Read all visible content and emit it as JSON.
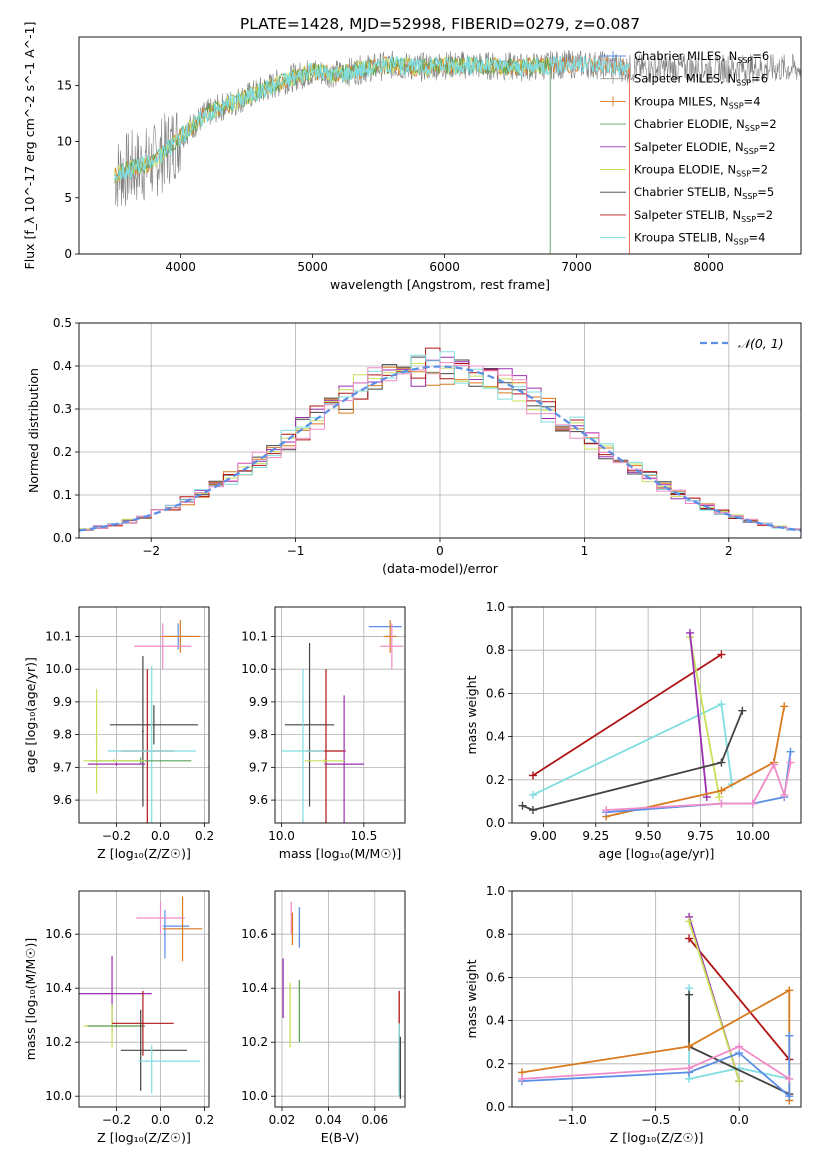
{
  "figure_title": "PLATE=1428, MJD=52998, FIBERID=0279, z=0.087",
  "colors": {
    "Chabrier MILES": "#5b8ee6",
    "Salpeter MILES": "#9a9a9a",
    "Kroupa MILES": "#d97a1f",
    "Chabrier ELODIE": "#5aa05a",
    "Salpeter ELODIE": "#9b30b0",
    "Kroupa ELODIE": "#c8e05a",
    "Chabrier STELIB": "#444444",
    "Salpeter STELIB": "#b01515",
    "Kroupa STELIB": "#80dde0",
    "pink": "#f08cc8",
    "normal": "#5b8ee6"
  },
  "chart_data": [
    {
      "id": "spectrum",
      "type": "line",
      "xlabel": "wavelength [Angstrom, rest frame]",
      "ylabel": "Flux [f_λ 10^-17 erg cm^-2 s^-1 A^-1]",
      "xlim": [
        3230,
        8700
      ],
      "ylim": [
        0,
        19.3
      ],
      "xticks": [
        4000,
        5000,
        6000,
        7000,
        8000
      ],
      "yticks": [
        0,
        5,
        10,
        15
      ],
      "grid": false,
      "legend_position": "top-right",
      "legend": [
        {
          "name": "Chabrier MILES",
          "n_label": "6"
        },
        {
          "name": "Salpeter MILES",
          "n_label": "6"
        },
        {
          "name": "Kroupa MILES",
          "n_label": "4"
        },
        {
          "name": "Chabrier ELODIE",
          "n_label": "2"
        },
        {
          "name": "Salpeter ELODIE",
          "n_label": "2"
        },
        {
          "name": "Kroupa ELODIE",
          "n_label": "2"
        },
        {
          "name": "Chabrier STELIB",
          "n_label": "5"
        },
        {
          "name": "Salpeter STELIB",
          "n_label": "2"
        },
        {
          "name": "Kroupa STELIB",
          "n_label": "4"
        }
      ],
      "continuum": {
        "x": [
          3500,
          3600,
          3800,
          4000,
          4200,
          4400,
          4600,
          4800,
          5000,
          5200,
          5400,
          5600,
          5800,
          6000,
          6200,
          6400,
          6600,
          6800,
          7000,
          7200,
          7400
        ],
        "y": [
          7.0,
          7.5,
          8.2,
          10.5,
          12.5,
          13.5,
          14.5,
          15.5,
          16.2,
          16.0,
          16.5,
          16.8,
          16.6,
          16.8,
          16.8,
          16.7,
          16.6,
          16.8,
          16.9,
          16.8,
          16.5
        ]
      }
    },
    {
      "id": "residuals",
      "type": "line",
      "xlabel": "(data-model)/error",
      "ylabel": "Normed distribution",
      "xlim": [
        -2.5,
        2.5
      ],
      "ylim": [
        0,
        0.5
      ],
      "xticks": [
        -2,
        -1,
        0,
        1,
        2
      ],
      "yticks": [
        0.0,
        0.1,
        0.2,
        0.3,
        0.4,
        0.5
      ],
      "grid": true,
      "legend_position": "top-right",
      "normal_label": "𝒩(0, 1)"
    },
    {
      "id": "age_vs_Z",
      "type": "scatter",
      "xlabel": "Z [log₁₀(Z/Z☉)]",
      "ylabel": "age  [log₁₀(age/yr)]",
      "xlim": [
        -0.37,
        0.22
      ],
      "ylim": [
        9.53,
        10.19
      ],
      "xticks": [
        -0.2,
        0.0,
        0.2
      ],
      "yticks": [
        9.6,
        9.7,
        9.8,
        9.9,
        10.0,
        10.1
      ],
      "grid": true,
      "points": [
        {
          "model": "Chabrier MILES",
          "x": 0.08,
          "y": 10.1,
          "xerr": 0.06,
          "yerr": 0.04
        },
        {
          "model": "Kroupa MILES",
          "x": 0.09,
          "y": 10.1,
          "xerr": 0.09,
          "yerr": 0.05
        },
        {
          "model": "pink",
          "x": 0.01,
          "y": 10.07,
          "xerr": 0.13,
          "yerr": 0.07
        },
        {
          "model": "Chabrier STELIB",
          "x": -0.03,
          "y": 9.83,
          "xerr": 0.2,
          "yerr": 0.06
        },
        {
          "model": "Chabrier STELIB",
          "x": -0.08,
          "y": 9.81,
          "xerr": 0.004,
          "yerr": 0.23
        },
        {
          "model": "Salpeter STELIB",
          "x": -0.06,
          "y": 9.75,
          "xerr": 0.12,
          "yerr": 0.25
        },
        {
          "model": "Kroupa STELIB",
          "x": -0.04,
          "y": 9.75,
          "xerr": 0.2,
          "yerr": 0.26
        },
        {
          "model": "Kroupa ELODIE",
          "x": -0.29,
          "y": 9.78,
          "xerr": 0.005,
          "yerr": 0.16
        },
        {
          "model": "Chabrier ELODIE",
          "x": -0.09,
          "y": 9.72,
          "xerr": 0.23,
          "yerr": 0.01
        },
        {
          "model": "Kroupa ELODIE",
          "x": -0.21,
          "y": 9.72,
          "xerr": 0.14,
          "yerr": 0.005
        },
        {
          "model": "Salpeter ELODIE",
          "x": -0.2,
          "y": 9.71,
          "xerr": 0.13,
          "yerr": 0.005
        }
      ]
    },
    {
      "id": "age_vs_mass",
      "type": "scatter",
      "xlabel": "mass [log₁₀(M/M☉)]",
      "ylabel": "",
      "xlim": [
        9.96,
        10.75
      ],
      "ylim": [
        9.53,
        10.19
      ],
      "xticks": [
        10.0,
        10.5
      ],
      "yticks": [
        9.6,
        9.7,
        9.8,
        9.9,
        10.0,
        10.1
      ],
      "grid": true,
      "points": [
        {
          "model": "Chabrier MILES",
          "x": 10.63,
          "y": 10.13,
          "xerr": 0.1,
          "yerr": 0.0
        },
        {
          "model": "Kroupa MILES",
          "x": 10.66,
          "y": 10.1,
          "xerr": 0.04,
          "yerr": 0.05
        },
        {
          "model": "pink",
          "x": 10.67,
          "y": 10.07,
          "xerr": 0.07,
          "yerr": 0.07
        },
        {
          "model": "Chabrier STELIB",
          "x": 10.17,
          "y": 9.83,
          "xerr": 0.15,
          "yerr": 0.25
        },
        {
          "model": "Salpeter STELIB",
          "x": 10.27,
          "y": 9.75,
          "xerr": 0.12,
          "yerr": 0.25
        },
        {
          "model": "Kroupa STELIB",
          "x": 10.13,
          "y": 9.75,
          "xerr": 0.13,
          "yerr": 0.25
        },
        {
          "model": "Salpeter ELODIE",
          "x": 10.38,
          "y": 9.71,
          "xerr": 0.12,
          "yerr": 0.21
        },
        {
          "model": "Kroupa ELODIE",
          "x": 10.26,
          "y": 9.72,
          "xerr": 0.12,
          "yerr": 0.005
        }
      ]
    },
    {
      "id": "weight_vs_age",
      "type": "line",
      "xlabel": "age  [log₁₀(age/yr)]",
      "ylabel": "mass weight",
      "xlim": [
        8.85,
        10.23
      ],
      "ylim": [
        0,
        1.0
      ],
      "xticks": [
        9.0,
        9.25,
        9.5,
        9.75,
        10.0
      ],
      "yticks": [
        0.0,
        0.2,
        0.4,
        0.6,
        0.8,
        1.0
      ],
      "grid": true,
      "series": [
        {
          "model": "Salpeter STELIB",
          "x": [
            8.95,
            9.85
          ],
          "y": [
            0.22,
            0.78
          ]
        },
        {
          "model": "Kroupa STELIB",
          "x": [
            8.95,
            9.85,
            9.9
          ],
          "y": [
            0.13,
            0.55,
            0.18
          ]
        },
        {
          "model": "Kroupa ELODIE",
          "x": [
            9.7,
            9.84
          ],
          "y": [
            0.86,
            0.12
          ]
        },
        {
          "model": "Salpeter ELODIE",
          "x": [
            9.7,
            9.78
          ],
          "y": [
            0.88,
            0.12
          ]
        },
        {
          "model": "Chabrier STELIB",
          "x": [
            8.9,
            8.95,
            9.85,
            9.95
          ],
          "y": [
            0.08,
            0.06,
            0.28,
            0.52
          ]
        },
        {
          "model": "Kroupa MILES",
          "x": [
            9.3,
            9.85,
            10.1,
            10.15
          ],
          "y": [
            0.03,
            0.15,
            0.28,
            0.54
          ]
        },
        {
          "model": "Chabrier MILES",
          "x": [
            9.3,
            9.85,
            10.0,
            10.15,
            10.18
          ],
          "y": [
            0.05,
            0.09,
            0.09,
            0.12,
            0.33
          ]
        },
        {
          "model": "pink",
          "x": [
            9.3,
            9.85,
            10.0,
            10.1,
            10.15,
            10.18
          ],
          "y": [
            0.06,
            0.09,
            0.09,
            0.27,
            0.13,
            0.28
          ]
        }
      ]
    },
    {
      "id": "mass_vs_Z",
      "type": "scatter",
      "xlabel": "Z [log₁₀(Z/Z☉)]",
      "ylabel": "mass [log₁₀(M/M☉)]",
      "xlim": [
        -0.37,
        0.22
      ],
      "ylim": [
        9.96,
        10.76
      ],
      "xticks": [
        -0.2,
        0.0,
        0.2
      ],
      "yticks": [
        10.0,
        10.2,
        10.4,
        10.6
      ],
      "grid": true,
      "points": [
        {
          "model": "Chabrier MILES",
          "x": 0.07,
          "y": 10.63,
          "xerr": 0.06,
          "yerr": 0.0
        },
        {
          "model": "Chabrier MILES",
          "x": 0.02,
          "y": 10.6,
          "xerr": 0.004,
          "yerr": 0.09
        },
        {
          "model": "Kroupa MILES",
          "x": 0.1,
          "y": 10.62,
          "xerr": 0.09,
          "yerr": 0.12
        },
        {
          "model": "pink",
          "x": 0.0,
          "y": 10.66,
          "xerr": 0.11,
          "yerr": 0.06
        },
        {
          "model": "Salpeter ELODIE",
          "x": -0.22,
          "y": 10.38,
          "xerr": 0.18,
          "yerr": 0.14
        },
        {
          "model": "Kroupa ELODIE",
          "x": -0.22,
          "y": 10.26,
          "xerr": 0.13,
          "yerr": 0.08
        },
        {
          "model": "Chabrier ELODIE",
          "x": -0.2,
          "y": 10.26,
          "xerr": 0.13,
          "yerr": 0.005
        },
        {
          "model": "Salpeter STELIB",
          "x": -0.08,
          "y": 10.27,
          "xerr": 0.14,
          "yerr": 0.12
        },
        {
          "model": "Chabrier STELIB",
          "x": -0.03,
          "y": 10.17,
          "xerr": 0.15,
          "yerr": 0.0
        },
        {
          "model": "Chabrier STELIB",
          "x": -0.09,
          "y": 10.17,
          "xerr": 0.0,
          "yerr": 0.15
        },
        {
          "model": "Kroupa STELIB",
          "x": 0.04,
          "y": 10.13,
          "xerr": 0.14,
          "yerr": 0.0
        },
        {
          "model": "Kroupa STELIB",
          "x": -0.04,
          "y": 10.1,
          "xerr": 0.0,
          "yerr": 0.09
        }
      ]
    },
    {
      "id": "mass_vs_ebv",
      "type": "scatter",
      "xlabel": "E(B-V)",
      "ylabel": "",
      "xlim": [
        0.017,
        0.073
      ],
      "ylim": [
        9.96,
        10.76
      ],
      "xticks": [
        0.02,
        0.04,
        0.06
      ],
      "yticks": [
        10.0,
        10.2,
        10.4,
        10.6
      ],
      "grid": true,
      "vlines": [
        {
          "model": "Salpeter ELODIE",
          "x": 0.0205,
          "y0": 10.29,
          "y1": 10.51
        },
        {
          "model": "Kroupa ELODIE",
          "x": 0.0235,
          "y0": 10.18,
          "y1": 10.42
        },
        {
          "model": "pink",
          "x": 0.024,
          "y0": 10.6,
          "y1": 10.72
        },
        {
          "model": "Kroupa MILES",
          "x": 0.0245,
          "y0": 10.56,
          "y1": 10.68
        },
        {
          "model": "Chabrier MILES",
          "x": 0.0275,
          "y0": 10.55,
          "y1": 10.7
        },
        {
          "model": "Chabrier ELODIE",
          "x": 0.0275,
          "y0": 10.2,
          "y1": 10.43
        },
        {
          "model": "Salpeter STELIB",
          "x": 0.0705,
          "y0": 10.02,
          "y1": 10.39
        },
        {
          "model": "Kroupa STELIB",
          "x": 0.0705,
          "y0": 10.0,
          "y1": 10.27
        },
        {
          "model": "Chabrier STELIB",
          "x": 0.071,
          "y0": 9.99,
          "y1": 10.22
        }
      ]
    },
    {
      "id": "weight_vs_Z",
      "type": "line",
      "xlabel": "Z [log₁₀(Z/Z☉)]",
      "ylabel": "mass weight",
      "xlim": [
        -1.36,
        0.37
      ],
      "ylim": [
        0,
        1.0
      ],
      "xticks": [
        -1.0,
        -0.5,
        0.0
      ],
      "yticks": [
        0.0,
        0.2,
        0.4,
        0.6,
        0.8,
        1.0
      ],
      "grid": true,
      "series": [
        {
          "model": "Salpeter STELIB",
          "x": [
            -0.3,
            0.3
          ],
          "y": [
            0.78,
            0.22
          ]
        },
        {
          "model": "Salpeter ELODIE",
          "x": [
            -0.3,
            0.0
          ],
          "y": [
            0.88,
            0.12
          ]
        },
        {
          "model": "Kroupa ELODIE",
          "x": [
            -0.3,
            0.0
          ],
          "y": [
            0.86,
            0.12
          ]
        },
        {
          "model": "Kroupa STELIB",
          "x": [
            -0.3,
            -0.3,
            0.0,
            0.3
          ],
          "y": [
            0.55,
            0.13,
            0.18,
            0.13
          ]
        },
        {
          "model": "Chabrier STELIB",
          "x": [
            -0.3,
            -0.3,
            0.3
          ],
          "y": [
            0.52,
            0.28,
            0.06
          ]
        },
        {
          "model": "Kroupa MILES",
          "x": [
            -1.3,
            -0.3,
            0.3,
            0.3
          ],
          "y": [
            0.16,
            0.28,
            0.54,
            0.03
          ]
        },
        {
          "model": "Chabrier MILES",
          "x": [
            -1.3,
            -0.3,
            0.0,
            0.3,
            0.3
          ],
          "y": [
            0.12,
            0.16,
            0.25,
            0.05,
            0.33
          ]
        },
        {
          "model": "pink",
          "x": [
            -1.3,
            -0.3,
            0.0,
            0.3
          ],
          "y": [
            0.13,
            0.18,
            0.28,
            0.13
          ]
        }
      ]
    }
  ]
}
